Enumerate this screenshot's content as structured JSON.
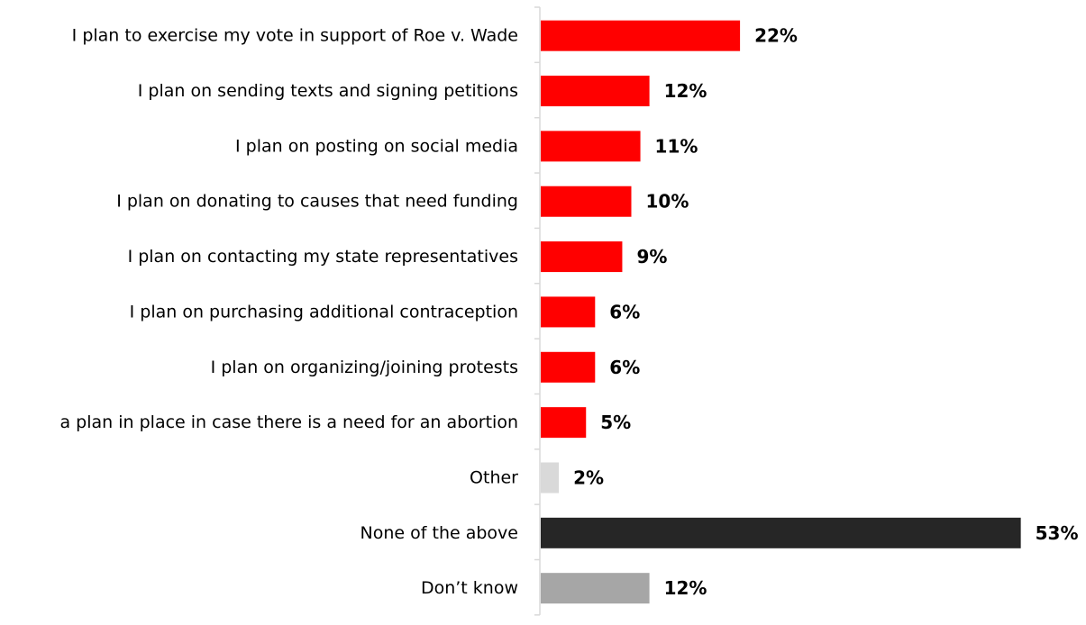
{
  "chart_data": {
    "type": "bar",
    "orientation": "horizontal",
    "title": "",
    "xlabel": "",
    "ylabel": "",
    "xlim": [
      0,
      53
    ],
    "grid": false,
    "legend": "none",
    "value_suffix": "%",
    "categories": [
      "I plan to exercise my vote in support of Roe v. Wade",
      "I plan on sending texts and signing petitions",
      "I plan on posting on social media",
      "I plan on donating to causes that need funding",
      "I plan on contacting my state representatives",
      "I plan on purchasing additional contraception",
      "I plan on organizing/joining protests",
      "a plan in place in case there is a need for an abortion",
      "Other",
      "None of the above",
      "Don’t know"
    ],
    "values": [
      22,
      12,
      11,
      10,
      9,
      6,
      6,
      5,
      2,
      53,
      12
    ],
    "value_labels": [
      "22%",
      "12%",
      "11%",
      "10%",
      "9%",
      "6%",
      "6%",
      "5%",
      "2%",
      "53%",
      "12%"
    ],
    "colors": [
      "#ff0000",
      "#ff0000",
      "#ff0000",
      "#ff0000",
      "#ff0000",
      "#ff0000",
      "#ff0000",
      "#ff0000",
      "#d9d9d9",
      "#262626",
      "#a6a6a6"
    ],
    "axis_color": "#d9d9d9",
    "label_color": "#000000"
  }
}
